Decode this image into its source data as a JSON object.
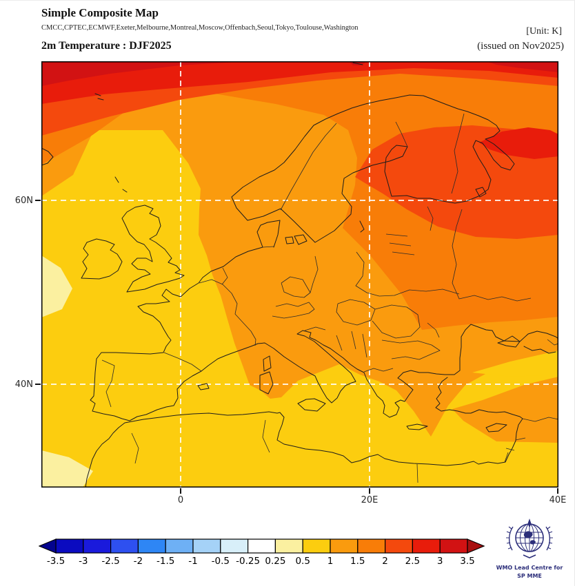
{
  "header": {
    "title": "Simple Composite Map",
    "models": "CMCC,CPTEC,ECMWF,Exeter,Melbourne,Montreal,Moscow,Offenbach,Seoul,Tokyo,Toulouse,Washington",
    "unit": "[Unit: K]",
    "variable": "2m Temperature : DJF2025",
    "issued": "(issued on Nov2025)"
  },
  "map": {
    "lat_labels": [
      "60N",
      "40N"
    ],
    "lon_labels": [
      "0",
      "20E",
      "40E"
    ],
    "grid_color": "#ffffff",
    "coast_color": "#1c1c1c",
    "frame_color": "#000000"
  },
  "colorbar": {
    "tick_labels": [
      "-3.5",
      "-3",
      "-2.5",
      "-2",
      "-1.5",
      "-1",
      "-0.5",
      "-0.25",
      "0.25",
      "0.5",
      "1",
      "1.5",
      "2",
      "2.5",
      "3",
      "3.5"
    ],
    "segment_colors": [
      "#0b0bc0",
      "#1a1adc",
      "#2e50f0",
      "#2e86f5",
      "#6eb0f5",
      "#a5d2f7",
      "#d8eff9",
      "#ffffff",
      "#fbf0a0",
      "#fccd0f",
      "#fa9b0e",
      "#f87d08",
      "#f4490d",
      "#e81c0b",
      "#d21213"
    ],
    "arrow_left_color": "#04048e",
    "arrow_right_color": "#a81010"
  },
  "logo": {
    "line1": "WMO Lead Centre for",
    "line2": "SP MME",
    "color": "#2c2e7a"
  },
  "chart_data": {
    "type": "heatmap",
    "title": "Simple Composite Map — 2m Temperature : DJF2025",
    "unit": "K",
    "issued": "Nov2025",
    "models": [
      "CMCC",
      "CPTEC",
      "ECMWF",
      "Exeter",
      "Melbourne",
      "Montreal",
      "Moscow",
      "Offenbach",
      "Seoul",
      "Tokyo",
      "Toulouse",
      "Washington"
    ],
    "lat_gridlines": [
      "60N",
      "40N"
    ],
    "lon_gridlines": [
      "0",
      "20E",
      "40E"
    ],
    "approx_domain": {
      "lon": [
        "~15W",
        "40E"
      ],
      "lat": [
        "~29N",
        "~75N"
      ]
    },
    "scale_boundaries_K": [
      -3.5,
      -3,
      -2.5,
      -2,
      -1.5,
      -1,
      -0.5,
      -0.25,
      0.25,
      0.5,
      1,
      1.5,
      2,
      2.5,
      3,
      3.5
    ],
    "anomaly_bands_shown": [
      {
        "band_K": "3 to 3.5",
        "areas": "far north-west corner of map; small patch at top-right corner"
      },
      {
        "band_K": "2.5 to 3",
        "areas": "Arctic strip along top edge; lens east of the White Sea toward 40E"
      },
      {
        "band_K": "2 to 2.5",
        "areas": "high-Arctic band; Finland, Karelia and north-west Russia to the eastern edge"
      },
      {
        "band_K": "1.5 to 2",
        "areas": "northern Scandinavia and Arctic coast; band across Belarus, Ukraine and western Russia"
      },
      {
        "band_K": "1 to 1.5",
        "areas": "central and eastern Europe, southern Scandinavia, Baltic, Balkans, NW Turkey, Levant/Cyprus area"
      },
      {
        "band_K": "0.5 to 1",
        "areas": "British Isles, France, Iberia, southern Italy, Greece, Mediterranean, North Africa, central Turkey"
      },
      {
        "band_K": "0.25 to 0.5",
        "areas": "small patches at the far western Atlantic edge"
      }
    ]
  }
}
